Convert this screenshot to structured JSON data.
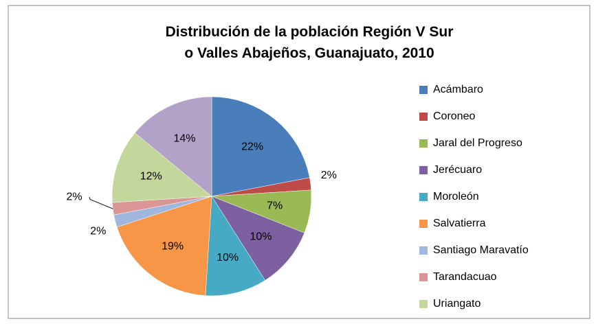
{
  "chart_data": {
    "type": "pie",
    "title": "Distribución de la población Región V Sur o Valles Abajeños, Guanajuato, 2010",
    "categories": [
      "Acámbaro",
      "Coroneo",
      "Jaral del Progreso",
      "Jerécuaro",
      "Moroleón",
      "Salvatierra",
      "Santiago Maravatío",
      "Tarandacuao",
      "Uriangato",
      null
    ],
    "values": [
      22,
      2,
      7,
      10,
      10,
      19,
      2,
      2,
      12,
      14
    ],
    "value_labels": [
      "22%",
      "2%",
      "7%",
      "10%",
      "10%",
      "19%",
      "2%",
      "2%",
      "12%",
      "14%"
    ],
    "colors": [
      "#4a7ebb",
      "#be4b48",
      "#98b954",
      "#7d60a0",
      "#46aac5",
      "#f79646",
      "#9fb7dd",
      "#d99694",
      "#c3d69b",
      "#b3a2c7"
    ],
    "legend": "right"
  }
}
